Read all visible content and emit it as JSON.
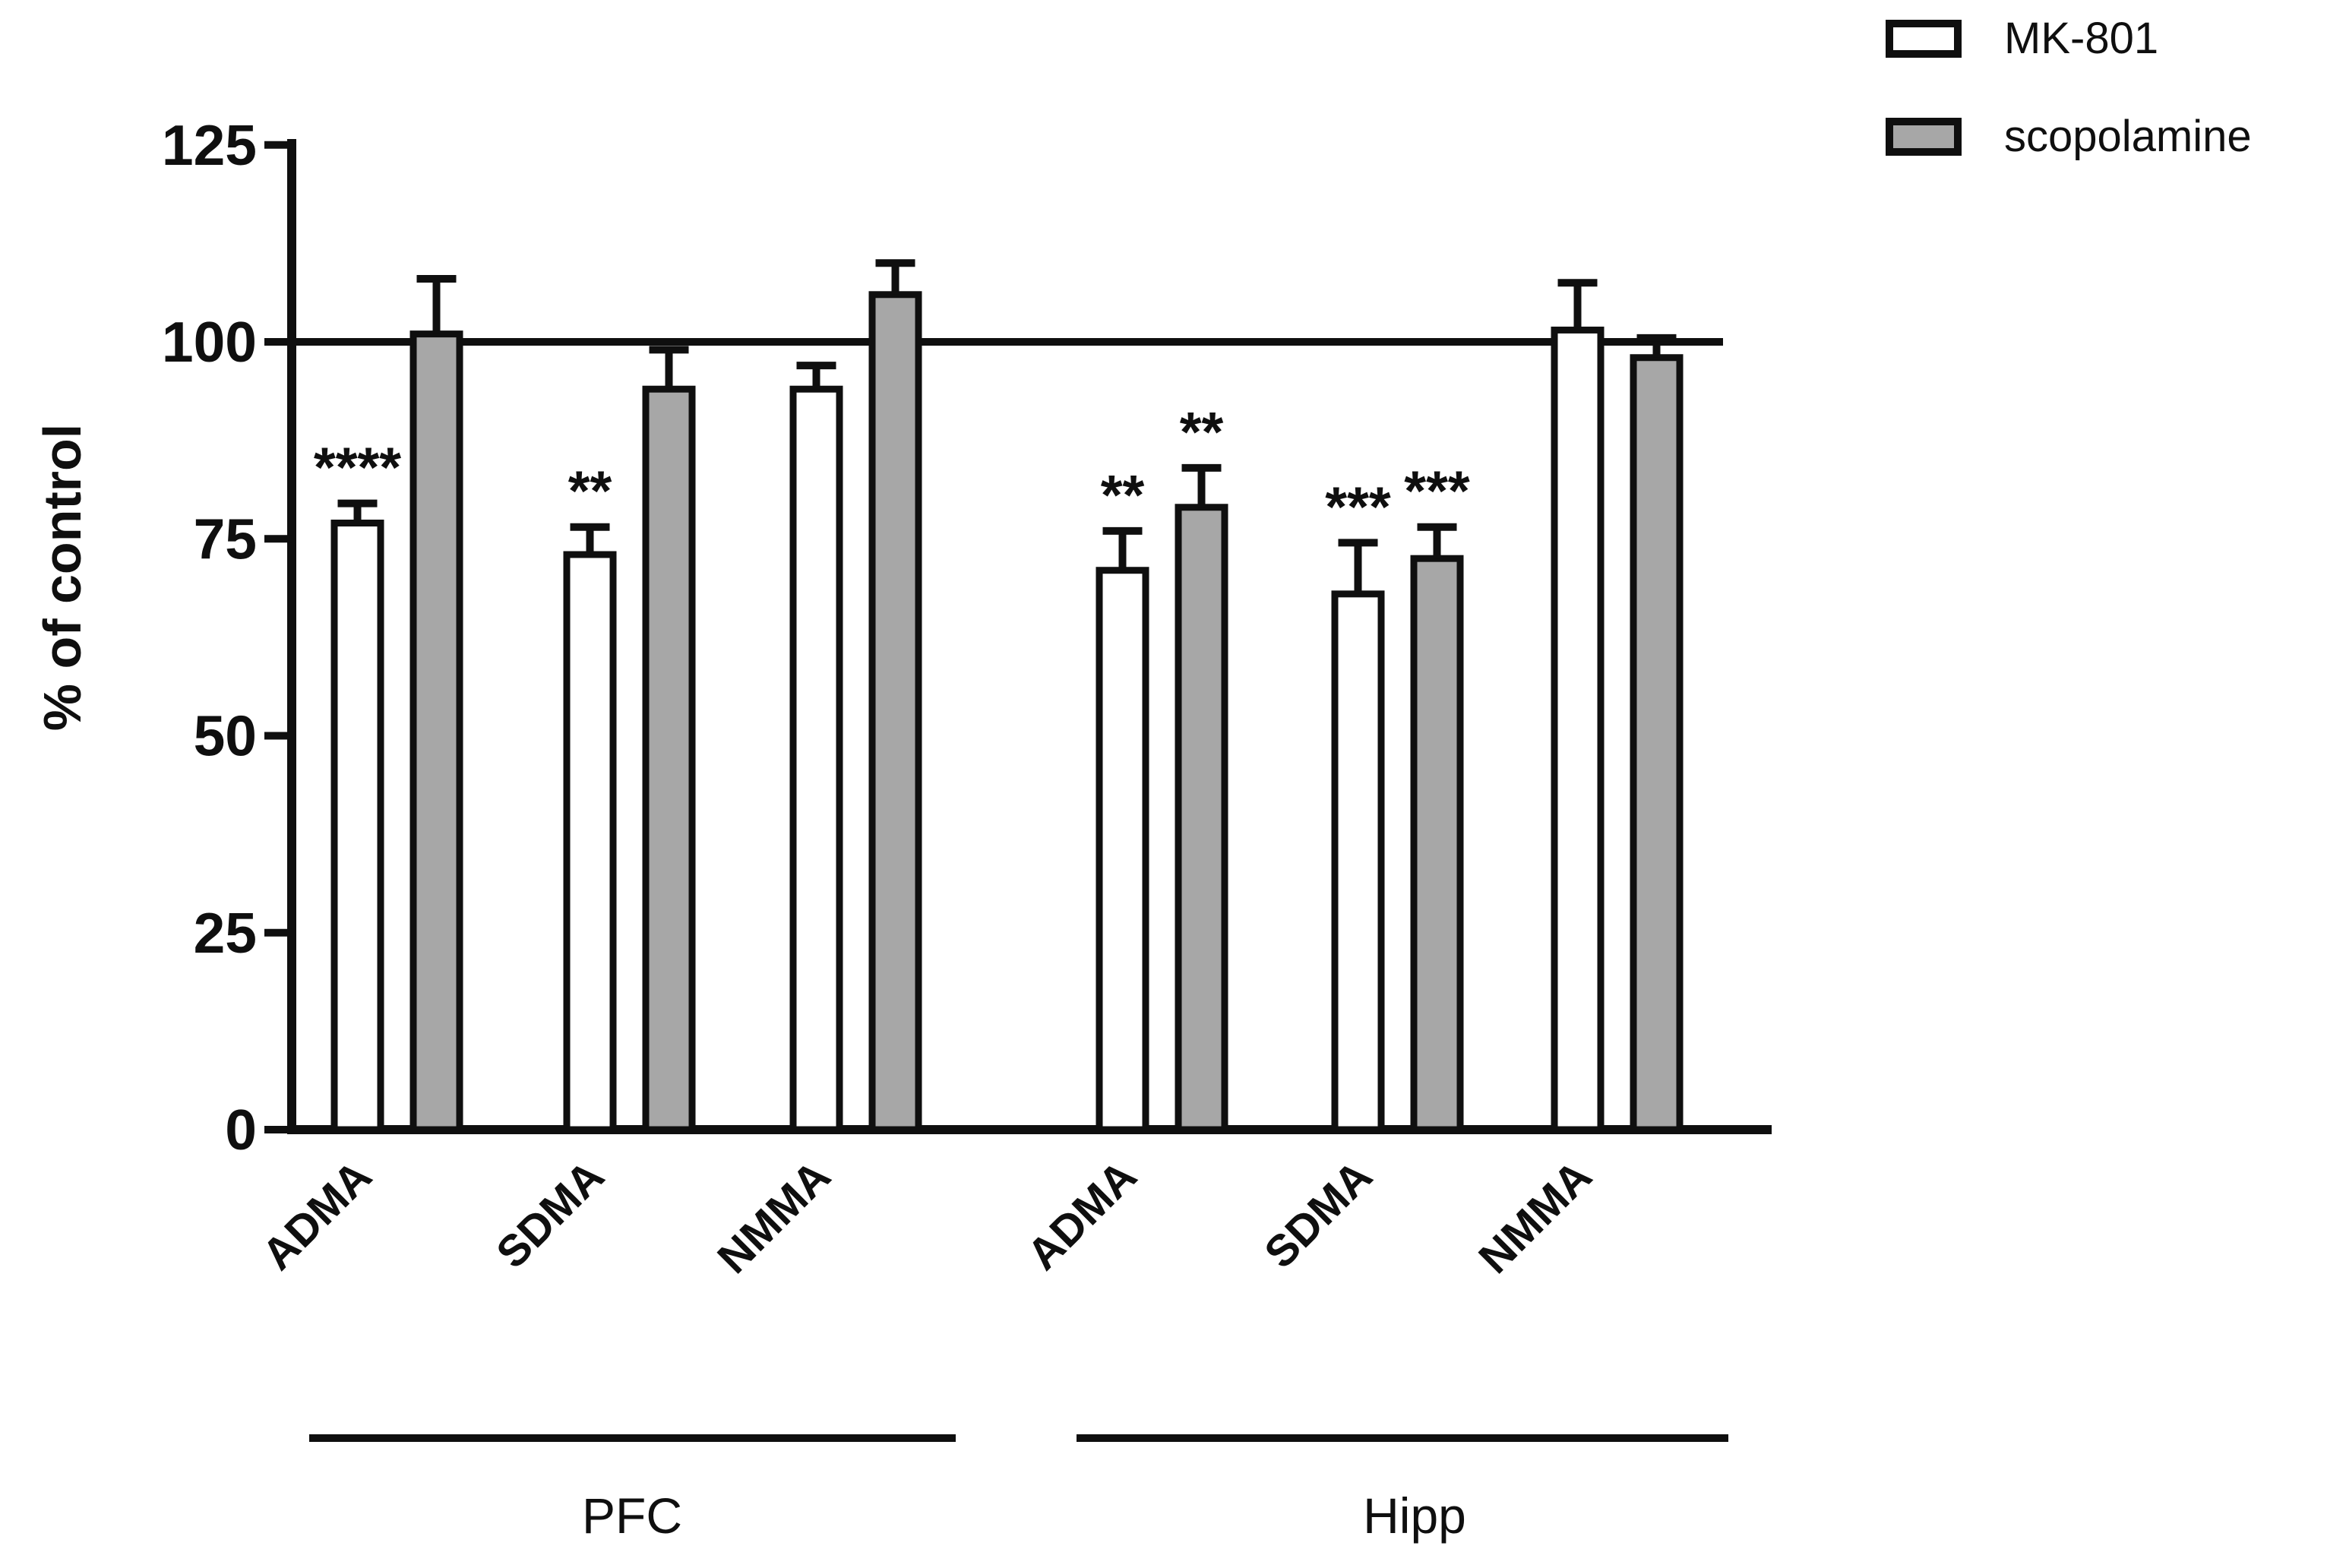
{
  "figure": {
    "background_color": "#ffffff",
    "ink_color": "#0f0f0f"
  },
  "legend": {
    "items": [
      {
        "label": "MK-801",
        "swatch_color": "#ffffff",
        "swatch_name": "mk801-swatch"
      },
      {
        "label": "scopolamine",
        "swatch_color": "#a7a7a7",
        "swatch_name": "scopolamine-swatch"
      }
    ]
  },
  "chart_data": {
    "type": "bar",
    "title": "",
    "xlabel": "",
    "ylabel": "% of control",
    "ylim": [
      0,
      125
    ],
    "yticks": [
      0,
      25,
      50,
      75,
      100,
      125
    ],
    "reference_line_y": 100,
    "grid": false,
    "legend_position": "top-right",
    "error_bars": "upper SEM only",
    "groups": [
      {
        "label": "PFC",
        "category_indexes": [
          0,
          1,
          2
        ]
      },
      {
        "label": "Hipp",
        "category_indexes": [
          3,
          4,
          5
        ]
      }
    ],
    "categories": [
      "ADMA",
      "SDMA",
      "NMMA",
      "ADMA",
      "SDMA",
      "NMMA"
    ],
    "series": [
      {
        "name": "MK-801",
        "fill": "#ffffff",
        "values": [
          77,
          73,
          94,
          71,
          68,
          101.5
        ],
        "errors_up": [
          2.5,
          3.5,
          3,
          5,
          6.5,
          6
        ],
        "significance": [
          "****",
          "**",
          "",
          "**",
          "***",
          ""
        ]
      },
      {
        "name": "scopolamine",
        "fill": "#a7a7a7",
        "values": [
          101,
          94,
          106,
          79,
          72.5,
          98
        ],
        "errors_up": [
          7,
          5,
          4,
          5,
          4,
          2.5
        ],
        "significance": [
          "",
          "",
          "",
          "**",
          "***",
          ""
        ]
      }
    ]
  }
}
